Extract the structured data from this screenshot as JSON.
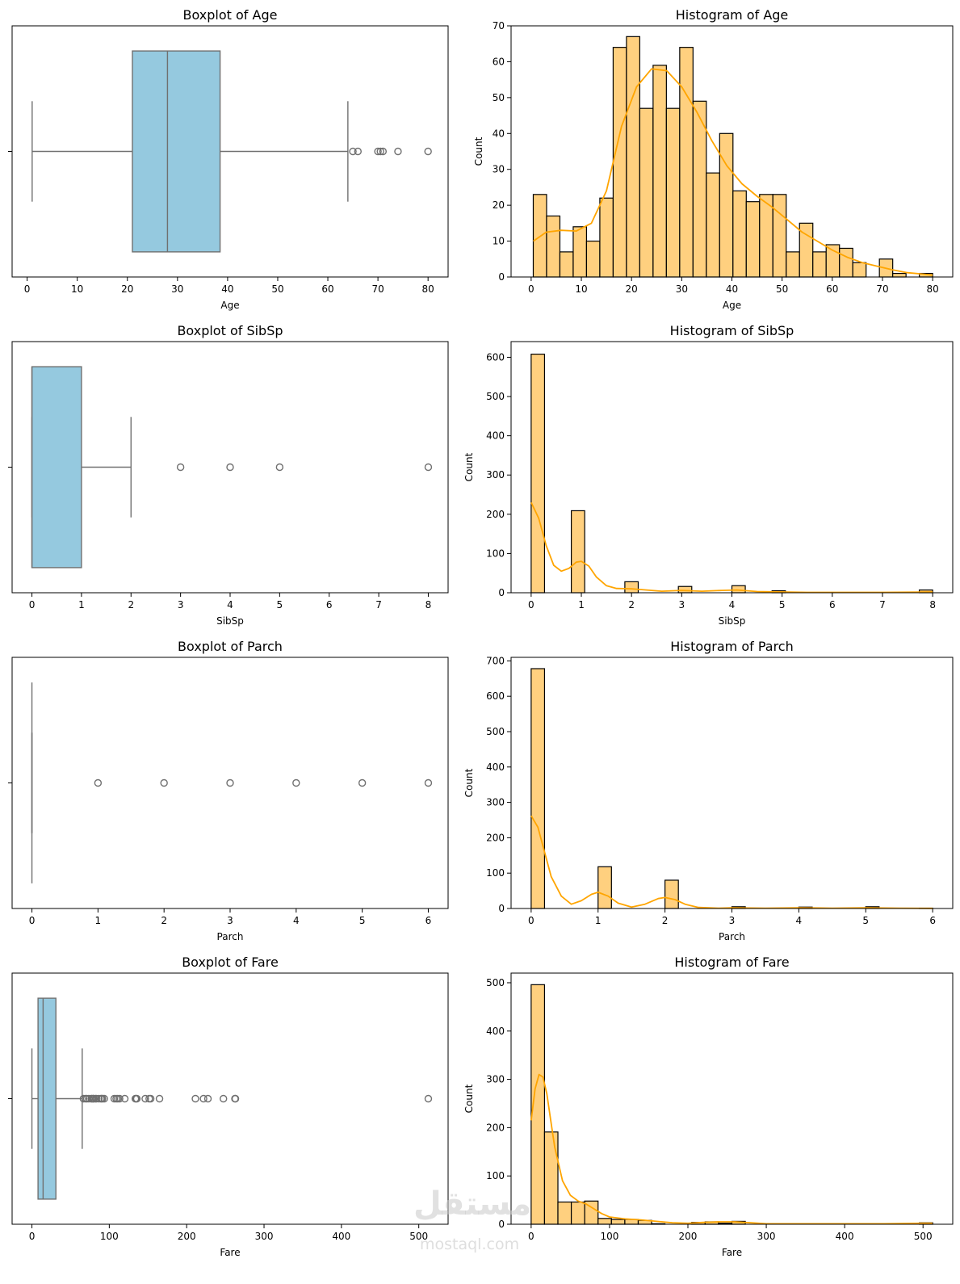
{
  "figure": {
    "watermark": {
      "text": "مستقل",
      "subtext": "mostaql.com"
    }
  },
  "chart_data": [
    {
      "id": "boxplot-age",
      "type": "boxplot",
      "title": "Boxplot of Age",
      "xlabel": "Age",
      "ylabel": "",
      "xlim": [
        -3,
        84
      ],
      "xticks": [
        0,
        10,
        20,
        30,
        40,
        50,
        60,
        70,
        80
      ],
      "box_color": "#95c9df",
      "line_color": "#707070",
      "stats": {
        "whisker_low": 1,
        "q1": 21,
        "median": 28,
        "q3": 38.5,
        "whisker_high": 64
      },
      "outliers": [
        65,
        66,
        70,
        70.5,
        71,
        74,
        80
      ]
    },
    {
      "id": "histogram-age",
      "type": "bar",
      "title": "Histogram of Age",
      "xlabel": "Age",
      "ylabel": "Count",
      "xlim": [
        -4,
        84
      ],
      "ylim": [
        0,
        70
      ],
      "xticks": [
        0,
        10,
        20,
        30,
        40,
        50,
        60,
        70,
        80
      ],
      "yticks": [
        0,
        10,
        20,
        30,
        40,
        50,
        60,
        70
      ],
      "bin_start": 0.42,
      "bin_end": 80,
      "values": [
        23,
        17,
        7,
        14,
        10,
        22,
        64,
        67,
        47,
        59,
        47,
        64,
        49,
        29,
        40,
        24,
        21,
        23,
        23,
        7,
        15,
        7,
        9,
        8,
        4,
        0,
        5,
        1,
        0,
        1
      ],
      "bar_color": "#ffd07f",
      "kde_color": "#ffa500",
      "kde": {
        "x": [
          0.42,
          3,
          6,
          9,
          12,
          15,
          18,
          21,
          24,
          27,
          30,
          33,
          36,
          39,
          42,
          45,
          48,
          51,
          54,
          57,
          60,
          63,
          66,
          69,
          72,
          75,
          78,
          80
        ],
        "y": [
          10,
          12.5,
          13,
          12.8,
          15,
          24,
          42,
          53,
          58,
          57.5,
          53,
          46,
          38,
          31,
          26,
          22.5,
          19.5,
          16,
          12.5,
          10,
          7.5,
          5.5,
          4,
          3,
          2,
          1.2,
          0.8,
          0.5
        ]
      }
    },
    {
      "id": "boxplot-sibsp",
      "type": "boxplot",
      "title": "Boxplot of SibSp",
      "xlabel": "SibSp",
      "ylabel": "",
      "xlim": [
        -0.4,
        8.4
      ],
      "xticks": [
        0,
        1,
        2,
        3,
        4,
        5,
        6,
        7,
        8
      ],
      "box_color": "#95c9df",
      "line_color": "#707070",
      "stats": {
        "whisker_low": 0,
        "q1": 0,
        "median": 0,
        "q3": 1,
        "whisker_high": 2
      },
      "outliers": [
        3,
        4,
        5,
        8
      ]
    },
    {
      "id": "histogram-sibsp",
      "type": "bar",
      "title": "Histogram of SibSp",
      "xlabel": "SibSp",
      "ylabel": "Count",
      "xlim": [
        -0.4,
        8.4
      ],
      "ylim": [
        0,
        640
      ],
      "xticks": [
        0,
        1,
        2,
        3,
        4,
        5,
        6,
        7,
        8
      ],
      "yticks": [
        0,
        100,
        200,
        300,
        400,
        500,
        600
      ],
      "bin_start": 0,
      "bin_end": 8,
      "values": [
        608,
        0,
        0,
        209,
        0,
        0,
        0,
        28,
        0,
        0,
        0,
        16,
        0,
        0,
        0,
        18,
        0,
        0,
        5,
        0,
        0,
        0,
        0,
        0,
        0,
        0,
        0,
        0,
        0,
        7
      ],
      "bar_color": "#ffd07f",
      "kde_color": "#ffa500",
      "kde": {
        "x": [
          0,
          0.15,
          0.3,
          0.45,
          0.6,
          0.75,
          0.9,
          1.0,
          1.15,
          1.3,
          1.5,
          1.7,
          2.0,
          2.3,
          2.6,
          3.0,
          3.4,
          3.8,
          4.1,
          4.5,
          5.0,
          5.5,
          6,
          7,
          8
        ],
        "y": [
          230,
          190,
          120,
          70,
          55,
          62,
          78,
          80,
          68,
          40,
          18,
          11,
          10,
          7,
          4,
          6,
          4,
          6,
          7,
          3,
          2,
          1,
          1,
          1,
          2
        ]
      }
    },
    {
      "id": "boxplot-parch",
      "type": "boxplot",
      "title": "Boxplot of Parch",
      "xlabel": "Parch",
      "ylabel": "",
      "xlim": [
        -0.3,
        6.3
      ],
      "xticks": [
        0,
        1,
        2,
        3,
        4,
        5,
        6
      ],
      "box_color": "#95c9df",
      "line_color": "#707070",
      "stats": {
        "whisker_low": 0,
        "q1": 0,
        "median": 0,
        "q3": 0,
        "whisker_high": 0
      },
      "outliers": [
        1,
        2,
        3,
        4,
        5,
        6
      ]
    },
    {
      "id": "histogram-parch",
      "type": "bar",
      "title": "Histogram of Parch",
      "xlabel": "Parch",
      "ylabel": "Count",
      "xlim": [
        -0.3,
        6.3
      ],
      "ylim": [
        0,
        710
      ],
      "xticks": [
        0,
        1,
        2,
        3,
        4,
        5,
        6
      ],
      "yticks": [
        0,
        100,
        200,
        300,
        400,
        500,
        600,
        700
      ],
      "bin_start": 0,
      "bin_end": 6,
      "values": [
        678,
        0,
        0,
        0,
        0,
        118,
        0,
        0,
        0,
        0,
        80,
        0,
        0,
        0,
        0,
        5,
        0,
        0,
        0,
        0,
        4,
        0,
        0,
        0,
        0,
        5,
        0,
        0,
        0,
        1
      ],
      "bar_color": "#ffd07f",
      "kde_color": "#ffa500",
      "kde": {
        "x": [
          0,
          0.1,
          0.2,
          0.3,
          0.45,
          0.6,
          0.75,
          0.9,
          1.0,
          1.15,
          1.3,
          1.5,
          1.7,
          1.9,
          2.0,
          2.15,
          2.3,
          2.5,
          2.8,
          3.0,
          3.5,
          4.0,
          4.5,
          5.0,
          5.5,
          6.0
        ],
        "y": [
          262,
          230,
          160,
          90,
          35,
          12,
          22,
          40,
          46,
          35,
          15,
          4,
          12,
          28,
          31,
          25,
          12,
          3,
          1,
          2,
          1,
          2,
          1,
          2,
          1,
          0.5
        ]
      }
    },
    {
      "id": "boxplot-fare",
      "type": "boxplot",
      "title": "Boxplot of Fare",
      "xlabel": "Fare",
      "ylabel": "",
      "xlim": [
        -25.6,
        537.9
      ],
      "xticks": [
        0,
        100,
        200,
        300,
        400,
        500
      ],
      "box_color": "#95c9df",
      "line_color": "#707070",
      "stats": {
        "whisker_low": 0,
        "q1": 7.9,
        "median": 14.45,
        "q3": 31,
        "whisker_high": 65
      },
      "outliers": [
        66.6,
        69.3,
        71,
        73.5,
        76.7,
        77.3,
        78.9,
        79.2,
        80,
        82.2,
        83.2,
        86.5,
        89.1,
        90,
        91.1,
        93.5,
        106.4,
        108.9,
        110.9,
        113.3,
        120,
        133.7,
        134.5,
        135.6,
        146.5,
        151.6,
        153.5,
        164.9,
        211.3,
        221.8,
        227.5,
        247.5,
        262.4,
        263,
        512.3
      ]
    },
    {
      "id": "histogram-fare",
      "type": "bar",
      "title": "Histogram of Fare",
      "xlabel": "Fare",
      "ylabel": "Count",
      "xlim": [
        -25.6,
        537.9
      ],
      "ylim": [
        0,
        520
      ],
      "xticks": [
        0,
        100,
        200,
        300,
        400,
        500
      ],
      "yticks": [
        0,
        100,
        200,
        300,
        400,
        500
      ],
      "bin_start": 0,
      "bin_end": 512.33,
      "values": [
        496,
        191,
        46,
        46,
        48,
        12,
        10,
        10,
        8,
        1,
        0,
        0,
        4,
        5,
        2,
        6,
        0,
        0,
        0,
        0,
        0,
        0,
        0,
        0,
        0,
        0,
        0,
        0,
        0,
        3
      ],
      "bar_color": "#ffd07f",
      "kde_color": "#ffa500",
      "kde": {
        "x": [
          0,
          5,
          10,
          15,
          20,
          25,
          30,
          40,
          50,
          60,
          70,
          80,
          90,
          100,
          120,
          140,
          160,
          180,
          200,
          220,
          240,
          260,
          280,
          300,
          350,
          400,
          450,
          500,
          512
        ],
        "y": [
          215,
          280,
          310,
          305,
          270,
          215,
          160,
          90,
          60,
          48,
          42,
          32,
          22,
          15,
          11,
          9,
          6,
          3,
          2,
          4,
          5,
          5,
          3,
          1,
          1,
          1,
          1,
          2,
          2
        ]
      }
    }
  ]
}
